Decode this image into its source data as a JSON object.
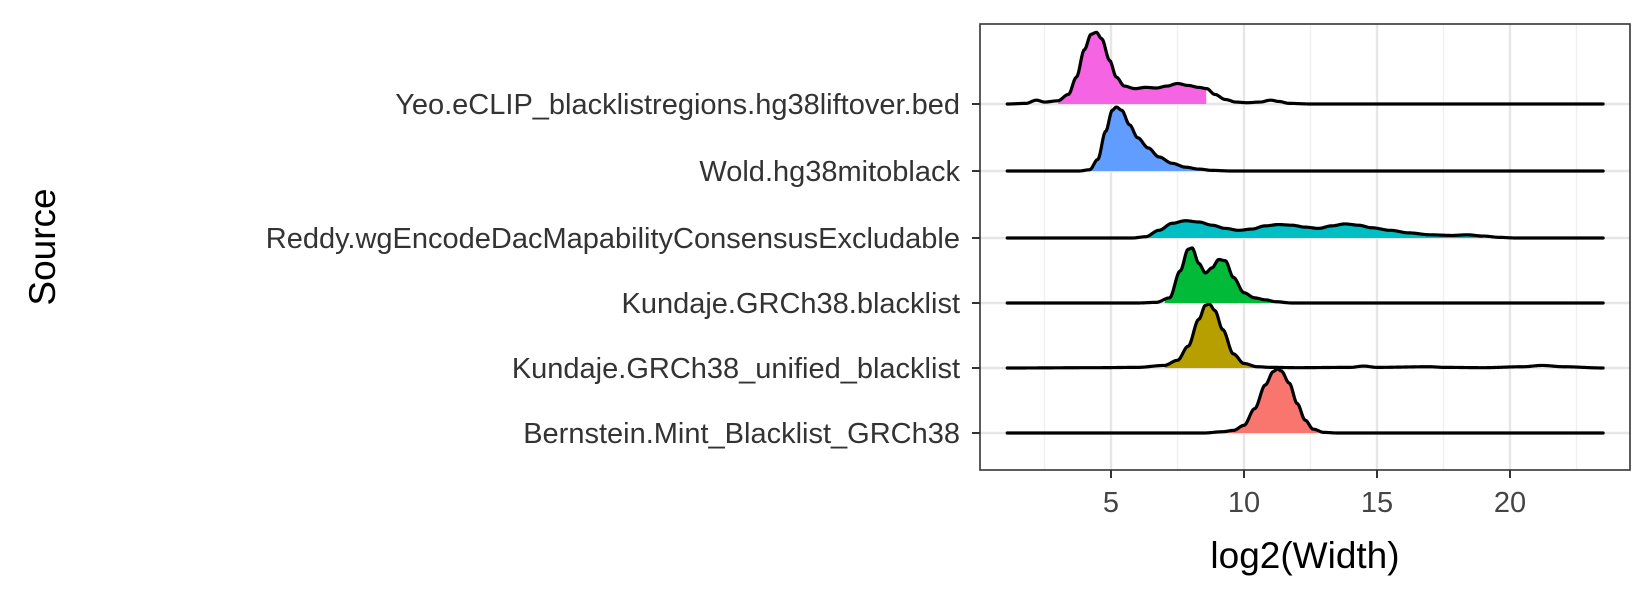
{
  "chart_data": {
    "type": "ridgeline",
    "xlabel": "log2(Width)",
    "ylabel": "Source",
    "xlim": [
      0,
      24.5
    ],
    "x_ticks": [
      5,
      10,
      15,
      20
    ],
    "x_tick_labels": [
      "5",
      "10",
      "15",
      "20"
    ],
    "grid": true,
    "legend": "none",
    "x_range_drawn": [
      1.1,
      23.5
    ],
    "series": [
      {
        "name": "Bernstein.Mint_Blacklist_GRCh38",
        "color": "#F8766D",
        "fill_range": [
          9.2,
          12.8
        ],
        "density_points": [
          [
            1.1,
            0
          ],
          [
            8.5,
            0
          ],
          [
            9.2,
            0.02
          ],
          [
            9.6,
            0.04
          ],
          [
            10.0,
            0.12
          ],
          [
            10.4,
            0.38
          ],
          [
            10.8,
            0.75
          ],
          [
            11.1,
            0.96
          ],
          [
            11.25,
            1.0
          ],
          [
            11.4,
            0.97
          ],
          [
            11.7,
            0.78
          ],
          [
            12.0,
            0.46
          ],
          [
            12.3,
            0.2
          ],
          [
            12.6,
            0.06
          ],
          [
            13.0,
            0.01
          ],
          [
            13.5,
            0
          ],
          [
            23.5,
            0
          ]
        ]
      },
      {
        "name": "Kundaje.GRCh38_unified_blacklist",
        "color": "#B79F00",
        "fill_range": [
          7.0,
          10.5
        ],
        "density_points": [
          [
            1.1,
            0
          ],
          [
            4.5,
            0.005
          ],
          [
            6.0,
            0.01
          ],
          [
            7.0,
            0.04
          ],
          [
            7.5,
            0.12
          ],
          [
            7.9,
            0.34
          ],
          [
            8.3,
            0.76
          ],
          [
            8.55,
            0.98
          ],
          [
            8.7,
            1.0
          ],
          [
            8.9,
            0.9
          ],
          [
            9.2,
            0.6
          ],
          [
            9.6,
            0.22
          ],
          [
            10.0,
            0.07
          ],
          [
            10.5,
            0.02
          ],
          [
            11.0,
            0.01
          ],
          [
            12.0,
            0.005
          ],
          [
            14.0,
            0.01
          ],
          [
            14.5,
            0.03
          ],
          [
            15.0,
            0.01
          ],
          [
            17.0,
            0.02
          ],
          [
            17.5,
            0.01
          ],
          [
            19.0,
            0.005
          ],
          [
            20.5,
            0.02
          ],
          [
            21.2,
            0.04
          ],
          [
            22.0,
            0.02
          ],
          [
            23.5,
            0
          ]
        ]
      },
      {
        "name": "Kundaje.GRCh38.blacklist",
        "color": "#00BA38",
        "fill_range": [
          7.0,
          11.2
        ],
        "density_points": [
          [
            1.1,
            0
          ],
          [
            6.0,
            0
          ],
          [
            6.7,
            0.01
          ],
          [
            7.2,
            0.08
          ],
          [
            7.6,
            0.5
          ],
          [
            7.9,
            0.84
          ],
          [
            8.05,
            0.86
          ],
          [
            8.3,
            0.62
          ],
          [
            8.55,
            0.47
          ],
          [
            8.8,
            0.55
          ],
          [
            9.05,
            0.68
          ],
          [
            9.3,
            0.66
          ],
          [
            9.6,
            0.4
          ],
          [
            10.0,
            0.16
          ],
          [
            10.4,
            0.08
          ],
          [
            10.8,
            0.05
          ],
          [
            11.2,
            0.02
          ],
          [
            11.8,
            0
          ],
          [
            23.5,
            0
          ]
        ]
      },
      {
        "name": "Reddy.wgEncodeDacMapabilityConsensusExcludable",
        "color": "#00BFC4",
        "fill_range": [
          6.1,
          19.0
        ],
        "density_points": [
          [
            1.1,
            0
          ],
          [
            5.8,
            0
          ],
          [
            6.3,
            0.02
          ],
          [
            6.8,
            0.12
          ],
          [
            7.3,
            0.23
          ],
          [
            7.8,
            0.27
          ],
          [
            8.3,
            0.25
          ],
          [
            8.8,
            0.2
          ],
          [
            9.3,
            0.15
          ],
          [
            9.8,
            0.12
          ],
          [
            10.3,
            0.14
          ],
          [
            10.8,
            0.19
          ],
          [
            11.3,
            0.21
          ],
          [
            11.8,
            0.2
          ],
          [
            12.3,
            0.17
          ],
          [
            12.8,
            0.15
          ],
          [
            13.3,
            0.19
          ],
          [
            13.8,
            0.22
          ],
          [
            14.3,
            0.2
          ],
          [
            14.8,
            0.16
          ],
          [
            15.5,
            0.12
          ],
          [
            16.2,
            0.08
          ],
          [
            17.0,
            0.05
          ],
          [
            17.8,
            0.04
          ],
          [
            18.4,
            0.05
          ],
          [
            19.0,
            0.03
          ],
          [
            19.6,
            0.01
          ],
          [
            20.2,
            0
          ],
          [
            23.5,
            0
          ]
        ]
      },
      {
        "name": "Wold.hg38mitoblack",
        "color": "#619CFF",
        "fill_range": [
          4.2,
          8.6
        ],
        "density_points": [
          [
            1.1,
            0
          ],
          [
            3.8,
            0
          ],
          [
            4.2,
            0.02
          ],
          [
            4.5,
            0.18
          ],
          [
            4.8,
            0.62
          ],
          [
            5.05,
            0.95
          ],
          [
            5.2,
            1.0
          ],
          [
            5.4,
            0.95
          ],
          [
            5.7,
            0.72
          ],
          [
            6.0,
            0.52
          ],
          [
            6.4,
            0.36
          ],
          [
            6.8,
            0.22
          ],
          [
            7.3,
            0.12
          ],
          [
            7.8,
            0.06
          ],
          [
            8.3,
            0.03
          ],
          [
            8.8,
            0.01
          ],
          [
            9.5,
            0
          ],
          [
            23.5,
            0
          ]
        ]
      },
      {
        "name": "Yeo.eCLIP_blacklistregions.hg38liftover.bed",
        "color": "#F564E3",
        "fill_range": [
          3.0,
          8.6
        ],
        "density_points": [
          [
            1.1,
            0
          ],
          [
            1.8,
            0.01
          ],
          [
            2.2,
            0.06
          ],
          [
            2.5,
            0.03
          ],
          [
            3.0,
            0.05
          ],
          [
            3.4,
            0.15
          ],
          [
            3.7,
            0.42
          ],
          [
            4.0,
            0.85
          ],
          [
            4.25,
            1.09
          ],
          [
            4.45,
            1.12
          ],
          [
            4.65,
            1.02
          ],
          [
            4.95,
            0.68
          ],
          [
            5.2,
            0.42
          ],
          [
            5.5,
            0.28
          ],
          [
            5.9,
            0.24
          ],
          [
            6.3,
            0.26
          ],
          [
            6.7,
            0.25
          ],
          [
            7.1,
            0.28
          ],
          [
            7.5,
            0.32
          ],
          [
            7.9,
            0.29
          ],
          [
            8.3,
            0.26
          ],
          [
            8.6,
            0.24
          ],
          [
            8.9,
            0.15
          ],
          [
            9.3,
            0.07
          ],
          [
            9.7,
            0.03
          ],
          [
            10.1,
            0.02
          ],
          [
            10.6,
            0.03
          ],
          [
            11.0,
            0.06
          ],
          [
            11.3,
            0.04
          ],
          [
            11.7,
            0.01
          ],
          [
            12.5,
            0
          ],
          [
            23.5,
            0
          ]
        ]
      }
    ]
  }
}
